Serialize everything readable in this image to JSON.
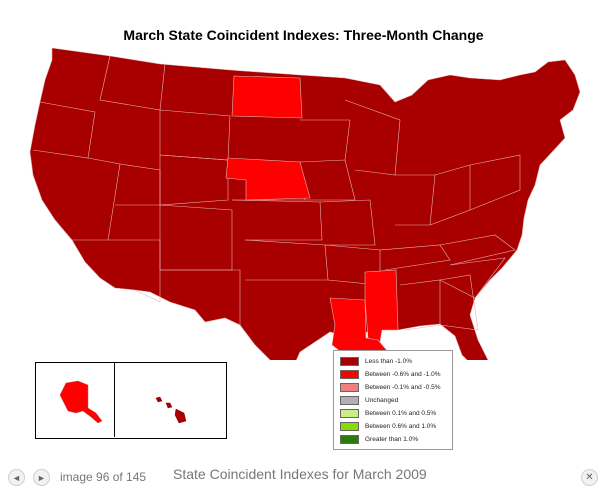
{
  "map": {
    "title": "March State Coincident Indexes: Three-Month Change",
    "colors": {
      "less_than_neg1": "#a80000",
      "between_neg06_neg1": "#ff0000",
      "between_neg01_neg05": "#f08080",
      "unchanged": "#b0b0b0",
      "between_01_05": "#ccee88",
      "between_06_10": "#88dd00",
      "greater_than_1": "#2b7a0b",
      "border": "#ffffff"
    },
    "highlighted_states": {
      "North Dakota": "Between -0.6% and -1.0%",
      "Nebraska": "Between -0.6% and -1.0%",
      "Louisiana": "Between -0.6% and -1.0%",
      "Mississippi": "Between -0.6% and -1.0%",
      "all_others": "Less than -1.0%"
    },
    "legend": [
      {
        "label": "Less than -1.0%",
        "color": "#a80000"
      },
      {
        "label": "Between -0.6% and -1.0%",
        "color": "#ff0000"
      },
      {
        "label": "Between -0.1% and -0.5%",
        "color": "#f08080"
      },
      {
        "label": "Unchanged",
        "color": "#b0b0b0"
      },
      {
        "label": "Between 0.1% and 0.5%",
        "color": "#ccee88"
      },
      {
        "label": "Between 0.6% and 1.0%",
        "color": "#88dd00"
      },
      {
        "label": "Greater than 1.0%",
        "color": "#2b7a0b"
      }
    ]
  },
  "viewer": {
    "counter": "image 96 of 145",
    "caption": "State Coincident Indexes for March 2009",
    "prev_icon": "prev-arrow-icon",
    "next_icon": "next-arrow-icon",
    "close_icon": "close-icon",
    "prev_glyph": "◄",
    "next_glyph": "►",
    "close_glyph": "✕"
  }
}
